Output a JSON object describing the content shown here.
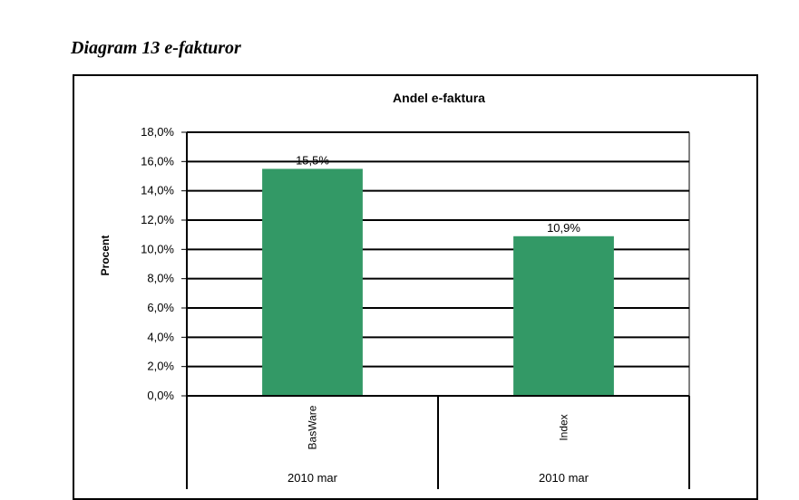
{
  "caption": "Diagram 13  e-fakturor",
  "chart_data": {
    "type": "bar",
    "title": "Andel e-faktura",
    "ylabel": "Procent",
    "xlabel": "",
    "ylim": [
      0,
      18
    ],
    "yticks": [
      0,
      2,
      4,
      6,
      8,
      10,
      12,
      14,
      16,
      18
    ],
    "ytick_labels": [
      "0,0%",
      "2,0%",
      "4,0%",
      "6,0%",
      "8,0%",
      "10,0%",
      "12,0%",
      "14,0%",
      "16,0%",
      "18,0%"
    ],
    "grid": true,
    "categories": [
      "BasWare",
      "Index"
    ],
    "group_labels": [
      "2010 mar",
      "2010 mar"
    ],
    "values": [
      15.5,
      10.9
    ],
    "data_labels": [
      "15,5%",
      "10,9%"
    ],
    "bar_color": "#339966"
  }
}
